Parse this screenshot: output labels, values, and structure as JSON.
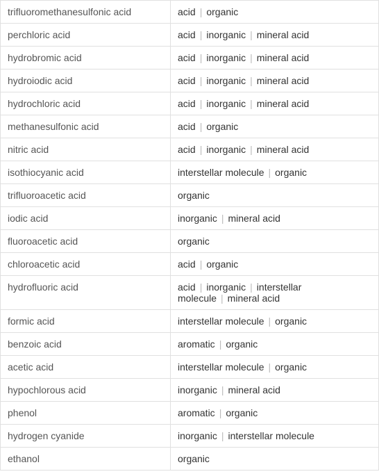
{
  "colors": {
    "border": "#e0e0e0",
    "text": "#333333",
    "name_text": "#555555",
    "separator": "#bbbbbb",
    "background": "#ffffff"
  },
  "layout": {
    "name_col_width": 245,
    "font_size": 14,
    "cell_padding": "8px 10px"
  },
  "separator": "|",
  "rows": [
    {
      "name": "trifluoromethanesulfonic acid",
      "tags": [
        "acid",
        "organic"
      ]
    },
    {
      "name": "perchloric acid",
      "tags": [
        "acid",
        "inorganic",
        "mineral acid"
      ]
    },
    {
      "name": "hydrobromic acid",
      "tags": [
        "acid",
        "inorganic",
        "mineral acid"
      ]
    },
    {
      "name": "hydroiodic acid",
      "tags": [
        "acid",
        "inorganic",
        "mineral acid"
      ]
    },
    {
      "name": "hydrochloric acid",
      "tags": [
        "acid",
        "inorganic",
        "mineral acid"
      ]
    },
    {
      "name": "methanesulfonic acid",
      "tags": [
        "acid",
        "organic"
      ]
    },
    {
      "name": "nitric acid",
      "tags": [
        "acid",
        "inorganic",
        "mineral acid"
      ]
    },
    {
      "name": "isothiocyanic acid",
      "tags": [
        "interstellar molecule",
        "organic"
      ]
    },
    {
      "name": "trifluoroacetic acid",
      "tags": [
        "organic"
      ]
    },
    {
      "name": "iodic acid",
      "tags": [
        "inorganic",
        "mineral acid"
      ]
    },
    {
      "name": "fluoroacetic acid",
      "tags": [
        "organic"
      ]
    },
    {
      "name": "chloroacetic acid",
      "tags": [
        "acid",
        "organic"
      ]
    },
    {
      "name": "hydrofluoric acid",
      "tags": [
        "acid",
        "inorganic",
        "interstellar molecule",
        "mineral acid"
      ]
    },
    {
      "name": "formic acid",
      "tags": [
        "interstellar molecule",
        "organic"
      ]
    },
    {
      "name": "benzoic acid",
      "tags": [
        "aromatic",
        "organic"
      ]
    },
    {
      "name": "acetic acid",
      "tags": [
        "interstellar molecule",
        "organic"
      ]
    },
    {
      "name": "hypochlorous acid",
      "tags": [
        "inorganic",
        "mineral acid"
      ]
    },
    {
      "name": "phenol",
      "tags": [
        "aromatic",
        "organic"
      ]
    },
    {
      "name": "hydrogen cyanide",
      "tags": [
        "inorganic",
        "interstellar molecule"
      ]
    },
    {
      "name": "ethanol",
      "tags": [
        "organic"
      ]
    }
  ]
}
